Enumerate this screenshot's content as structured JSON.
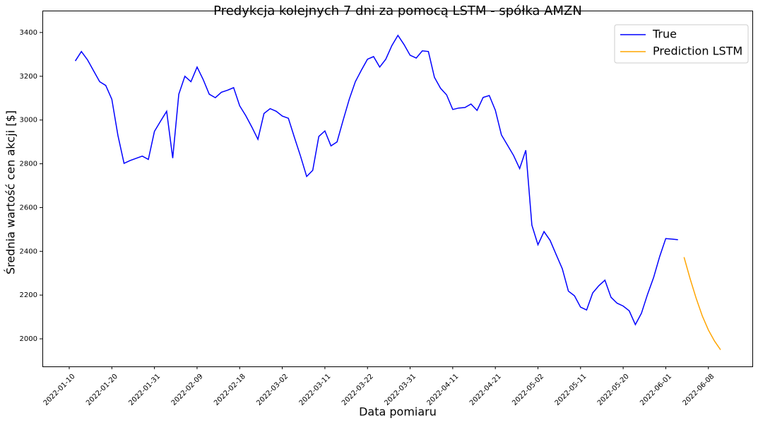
{
  "chart_data": {
    "type": "line",
    "title": "Predykcja kolejnych 7 dni za pomocą LSTM - spółka AMZN",
    "x_label": "Data pomiaru",
    "y_label": "Średnia wartość cen akcji [$]",
    "legend": "upper right",
    "ylim": [
      1874,
      3500
    ],
    "yticks": [
      2000,
      2200,
      2400,
      2600,
      2800,
      3000,
      3200,
      3400
    ],
    "categories": [
      "2022-01-10",
      null,
      null,
      null,
      null,
      null,
      null,
      "2022-01-20",
      null,
      null,
      null,
      null,
      null,
      null,
      "2022-01-31",
      null,
      null,
      null,
      null,
      null,
      null,
      "2022-02-09",
      null,
      null,
      null,
      null,
      null,
      null,
      "2022-02-18",
      null,
      null,
      null,
      null,
      null,
      null,
      "2022-03-02",
      null,
      null,
      null,
      null,
      null,
      null,
      "2022-03-11",
      null,
      null,
      null,
      null,
      null,
      null,
      "2022-03-22",
      null,
      null,
      null,
      null,
      null,
      null,
      "2022-03-31",
      null,
      null,
      null,
      null,
      null,
      null,
      "2022-04-11",
      null,
      null,
      null,
      null,
      null,
      null,
      "2022-04-21",
      null,
      null,
      null,
      null,
      null,
      null,
      "2022-05-02",
      null,
      null,
      null,
      null,
      null,
      null,
      "2022-05-11",
      null,
      null,
      null,
      null,
      null,
      null,
      "2022-05-20",
      null,
      null,
      null,
      null,
      null,
      null,
      "2022-06-01",
      null,
      null,
      null,
      null,
      null,
      null,
      "2022-06-08",
      null,
      null
    ],
    "series": [
      {
        "name": "True",
        "color": "#0000ff",
        "values": [
          null,
          3270,
          3313,
          3275,
          3225,
          3175,
          3158,
          3095,
          2930,
          2802,
          2815,
          2825,
          2835,
          2820,
          2948,
          2995,
          3040,
          2826,
          3118,
          3200,
          3175,
          3242,
          3185,
          3118,
          3102,
          3127,
          3136,
          3148,
          3065,
          3020,
          2968,
          2912,
          3030,
          3052,
          3040,
          3018,
          3008,
          2920,
          2835,
          2742,
          2770,
          2925,
          2950,
          2882,
          2900,
          3000,
          3095,
          3175,
          3228,
          3278,
          3290,
          3242,
          3278,
          3340,
          3387,
          3345,
          3296,
          3283,
          3316,
          3313,
          3195,
          3145,
          3115,
          3048,
          3055,
          3057,
          3073,
          3044,
          3103,
          3112,
          3045,
          2932,
          2885,
          2838,
          2778,
          2862,
          2520,
          2430,
          2490,
          2450,
          2385,
          2320,
          2218,
          2197,
          2145,
          2132,
          2210,
          2243,
          2268,
          2190,
          2163,
          2150,
          2128,
          2065,
          2117,
          2203,
          2280,
          2376,
          2458,
          2456,
          2453,
          null,
          null,
          null,
          null,
          null,
          null,
          null
        ]
      },
      {
        "name": "Prediction LSTM",
        "color": "#ffa500",
        "values": [
          null,
          null,
          null,
          null,
          null,
          null,
          null,
          null,
          null,
          null,
          null,
          null,
          null,
          null,
          null,
          null,
          null,
          null,
          null,
          null,
          null,
          null,
          null,
          null,
          null,
          null,
          null,
          null,
          null,
          null,
          null,
          null,
          null,
          null,
          null,
          null,
          null,
          null,
          null,
          null,
          null,
          null,
          null,
          null,
          null,
          null,
          null,
          null,
          null,
          null,
          null,
          null,
          null,
          null,
          null,
          null,
          null,
          null,
          null,
          null,
          null,
          null,
          null,
          null,
          null,
          null,
          null,
          null,
          null,
          null,
          null,
          null,
          null,
          null,
          null,
          null,
          null,
          null,
          null,
          null,
          null,
          null,
          null,
          null,
          null,
          null,
          null,
          null,
          null,
          null,
          null,
          null,
          null,
          null,
          null,
          null,
          null,
          null,
          null,
          null,
          null,
          2373,
          2275,
          2185,
          2105,
          2040,
          1990,
          1950
        ]
      }
    ]
  }
}
